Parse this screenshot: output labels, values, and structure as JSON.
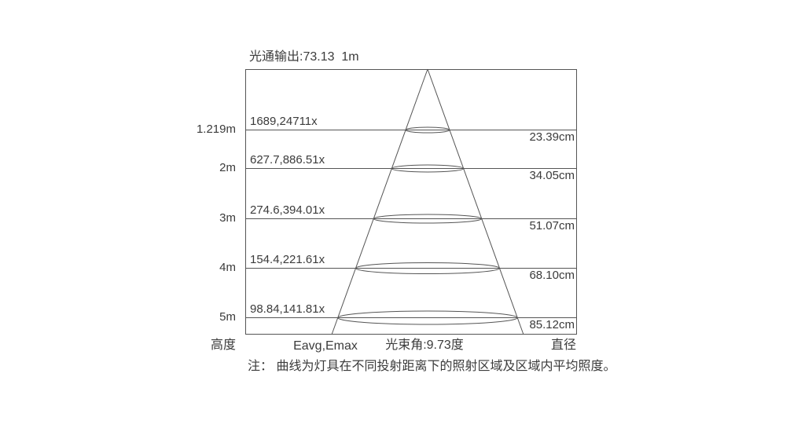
{
  "colors": {
    "line": "#555555",
    "text": "#3b3b3b",
    "background": "#ffffff"
  },
  "chart_data": {
    "type": "table",
    "subtype": "photometric-beam-cone-diagram",
    "title": "光通输出:73.13  1m",
    "luminous_flux": 73.13,
    "beam_angle_label": "光束角:9.73度",
    "beam_angle_deg": 9.73,
    "columns": [
      "高度",
      "Eavg,Emax",
      "直径"
    ],
    "rows": [
      {
        "height_label": "1.219m",
        "height_m": 1.219,
        "eavg_emax_label": "1689,24711x",
        "eavg_lx": 1689,
        "emax_lx": 2471,
        "diameter_label": "23.39cm",
        "diameter_cm": 23.39
      },
      {
        "height_label": "2m",
        "height_m": 2,
        "eavg_emax_label": "627.7,886.51x",
        "eavg_lx": 627.7,
        "emax_lx": 886.5,
        "diameter_label": "34.05cm",
        "diameter_cm": 34.05
      },
      {
        "height_label": "3m",
        "height_m": 3,
        "eavg_emax_label": "274.6,394.01x",
        "eavg_lx": 274.6,
        "emax_lx": 394.0,
        "diameter_label": "51.07cm",
        "diameter_cm": 51.07
      },
      {
        "height_label": "4m",
        "height_m": 4,
        "eavg_emax_label": "154.4,221.61x",
        "eavg_lx": 154.4,
        "emax_lx": 221.6,
        "diameter_label": "68.10cm",
        "diameter_cm": 68.1
      },
      {
        "height_label": "5m",
        "height_m": 5,
        "eavg_emax_label": "98.84,141.81x",
        "eavg_lx": 98.84,
        "emax_lx": 141.8,
        "diameter_label": "85.12cm",
        "diameter_cm": 85.12
      }
    ],
    "note": "注： 曲线为灯具在不同投射距离下的照射区域及区域内平均照度。"
  }
}
